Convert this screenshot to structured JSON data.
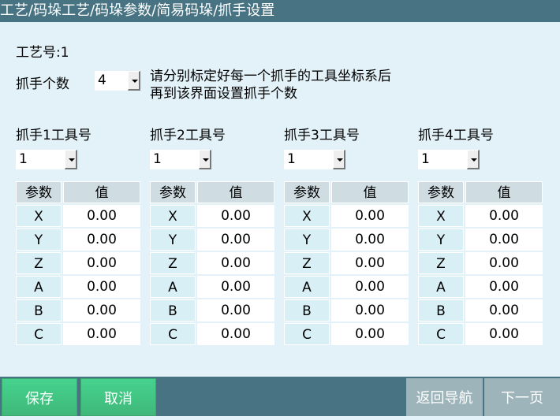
{
  "title": "工艺/码垛工艺/码垛参数/简易码垛/抓手设置",
  "process_label": "工艺号:1",
  "gripper_count": {
    "label": "抓手个数",
    "value": "4"
  },
  "hint": [
    "请分别标定好每一个抓手的工具坐标系后",
    "再到该界面设置抓手个数"
  ],
  "table_headers": {
    "param": "参数",
    "value": "值"
  },
  "grippers": [
    {
      "label": "抓手1工具号",
      "tool": "1",
      "rows": [
        [
          "X",
          "0.00"
        ],
        [
          "Y",
          "0.00"
        ],
        [
          "Z",
          "0.00"
        ],
        [
          "A",
          "0.00"
        ],
        [
          "B",
          "0.00"
        ],
        [
          "C",
          "0.00"
        ]
      ]
    },
    {
      "label": "抓手2工具号",
      "tool": "1",
      "rows": [
        [
          "X",
          "0.00"
        ],
        [
          "Y",
          "0.00"
        ],
        [
          "Z",
          "0.00"
        ],
        [
          "A",
          "0.00"
        ],
        [
          "B",
          "0.00"
        ],
        [
          "C",
          "0.00"
        ]
      ]
    },
    {
      "label": "抓手3工具号",
      "tool": "1",
      "rows": [
        [
          "X",
          "0.00"
        ],
        [
          "Y",
          "0.00"
        ],
        [
          "Z",
          "0.00"
        ],
        [
          "A",
          "0.00"
        ],
        [
          "B",
          "0.00"
        ],
        [
          "C",
          "0.00"
        ]
      ]
    },
    {
      "label": "抓手4工具号",
      "tool": "1",
      "rows": [
        [
          "X",
          "0.00"
        ],
        [
          "Y",
          "0.00"
        ],
        [
          "Z",
          "0.00"
        ],
        [
          "A",
          "0.00"
        ],
        [
          "B",
          "0.00"
        ],
        [
          "C",
          "0.00"
        ]
      ]
    }
  ],
  "buttons": {
    "save": "保存",
    "cancel": "取消",
    "back": "返回导航",
    "next": "下一页"
  },
  "colors": {
    "titlebar": "#477383",
    "background": "#e2f2f8",
    "primary_button": "#44cc88",
    "secondary_button": "#9db4bb"
  }
}
